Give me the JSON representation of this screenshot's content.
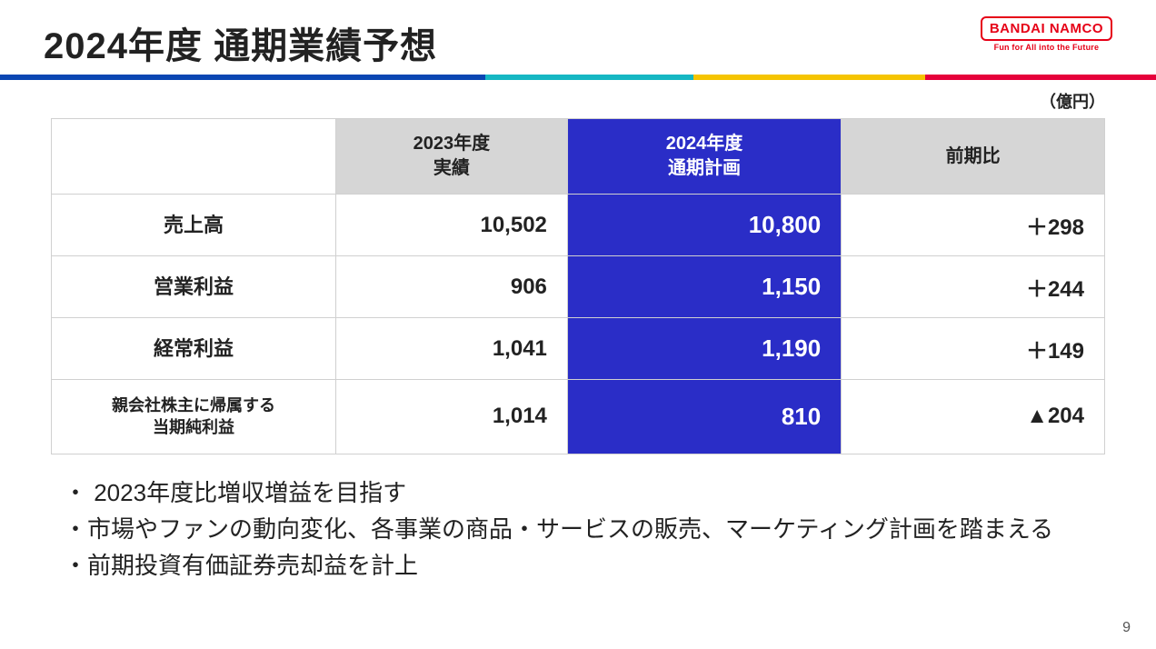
{
  "title": "2024年度 通期業績予想",
  "logo": {
    "main": "BANDAI NAMCO",
    "sub": "Fun for All into the Future"
  },
  "color_bar": {
    "segments": [
      {
        "color": "#0a46b3",
        "width": "42%"
      },
      {
        "color": "#16b7c3",
        "width": "18%"
      },
      {
        "color": "#f5c400",
        "width": "20%"
      },
      {
        "color": "#e6003a",
        "width": "20%"
      }
    ]
  },
  "unit_label": "（億円）",
  "table": {
    "type": "table",
    "col_widths": [
      "27%",
      "22%",
      "26%",
      "25%"
    ],
    "header_bg": "#d6d6d6",
    "plan_bg": "#2a2dc7",
    "plan_fg": "#ffffff",
    "border_color": "#d0d0d0",
    "header_fontsize": 20,
    "cell_fontsize": 24,
    "plan_cell_fontsize": 26,
    "columns": [
      "",
      "2023年度\n実績",
      "2024年度\n通期計画",
      "前期比"
    ],
    "rows": [
      {
        "label": "売上高",
        "label_small": false,
        "fy2023": "10,502",
        "plan": "10,800",
        "diff": "＋298"
      },
      {
        "label": "営業利益",
        "label_small": false,
        "fy2023": "906",
        "plan": "1,150",
        "diff": "＋244"
      },
      {
        "label": "経常利益",
        "label_small": false,
        "fy2023": "1,041",
        "plan": "1,190",
        "diff": "＋149"
      },
      {
        "label": "親会社株主に帰属する\n当期純利益",
        "label_small": true,
        "fy2023": "1,014",
        "plan": "810",
        "diff": "▲204"
      }
    ]
  },
  "bullets": [
    "・ 2023年度比増収増益を目指す",
    "・市場やファンの動向変化、各事業の商品・サービスの販売、マーケティング計画を踏まえる",
    "・前期投資有価証券売却益を計上"
  ],
  "page_number": "9"
}
